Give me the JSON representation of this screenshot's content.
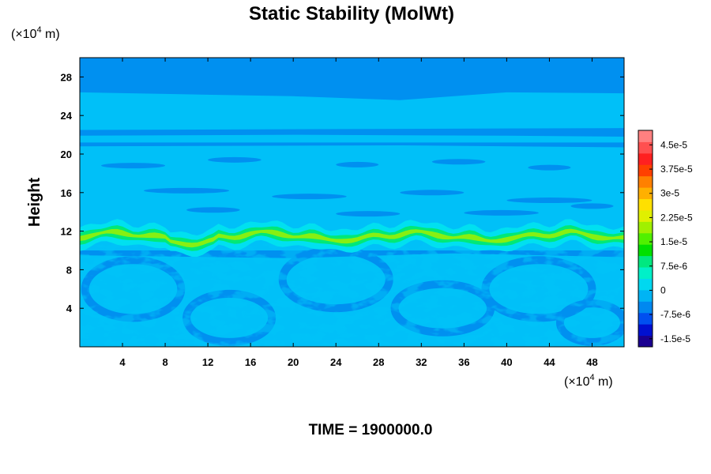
{
  "chart_data": {
    "type": "heatmap",
    "title": "Static Stability (MolWt)",
    "ylabel": "Height",
    "x_unit_prefix": "(×10",
    "x_unit_exp": "4",
    "x_unit_suffix": " m)",
    "y_unit_prefix": "(×10",
    "y_unit_exp": "4",
    "y_unit_suffix": " m)",
    "xlim": [
      0,
      51
    ],
    "ylim": [
      0,
      30
    ],
    "x_ticks": [
      4,
      8,
      12,
      16,
      20,
      24,
      28,
      32,
      36,
      40,
      44,
      48
    ],
    "y_ticks": [
      4,
      8,
      12,
      16,
      20,
      24,
      28
    ],
    "footer": "TIME = 1900000.0",
    "colorbar": {
      "tick_labels": [
        "4.5e-5",
        "3.75e-5",
        "3e-5",
        "2.25e-5",
        "1.5e-5",
        "7.5e-6",
        "0",
        "-7.5e-6",
        "-1.5e-5"
      ],
      "tick_values": [
        4.5e-05,
        3.75e-05,
        3e-05,
        2.25e-05,
        1.5e-05,
        7.5e-06,
        0,
        -7.5e-06,
        -1.5e-05
      ],
      "range": [
        -1.75e-05,
        4.95e-05
      ],
      "colors": [
        "#1a0090",
        "#0010d0",
        "#0050f0",
        "#0088f0",
        "#00b4f4",
        "#00d8f0",
        "#00f0c8",
        "#00e880",
        "#00e000",
        "#50f000",
        "#a0f000",
        "#e0f000",
        "#ffe000",
        "#ffb000",
        "#ff8000",
        "#ff4000",
        "#ff2020",
        "#ff5050",
        "#ff8080"
      ]
    },
    "background_color": "#00c0f8",
    "dominant_colors": {
      "level_minus": "#0090f0",
      "level_zero": "#00c0f8",
      "level_plus": "#00e0f0",
      "jet_band": "#00e878",
      "jet_peak": "#a0f000"
    },
    "features": [
      {
        "name": "tropopause stability band",
        "y_center": 11.5,
        "x_range": [
          0,
          51
        ]
      },
      {
        "name": "upper layer",
        "y_range": [
          25,
          30
        ]
      },
      {
        "name": "mid layer",
        "y_range": [
          20.5,
          22.5
        ]
      }
    ]
  }
}
